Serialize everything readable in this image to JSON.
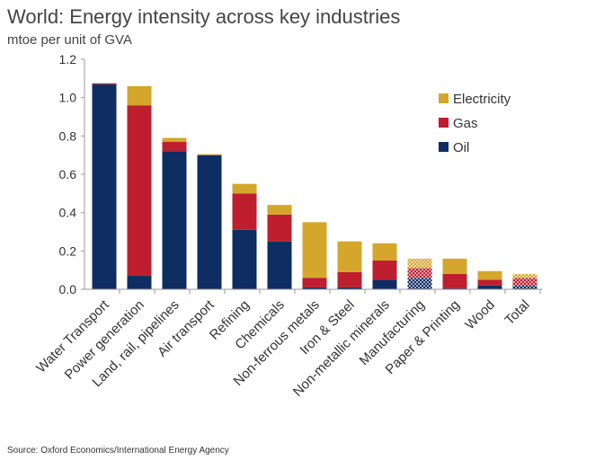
{
  "header": {
    "title": "World: Energy intensity across key industries",
    "subtitle": "mtoe per unit of GVA"
  },
  "footer": {
    "source": "Source: Oxford Economics/International Energy Agency"
  },
  "colors": {
    "oil": "#0d2d63",
    "gas": "#be1e2d",
    "electricity": "#d4a72c"
  },
  "chart_data": {
    "type": "bar",
    "stacked": true,
    "categories": [
      "Water Transport",
      "Power generation",
      "Land, rail, pipelines",
      "Air transport",
      "Refining",
      "Chemicals",
      "Non-ferrous metals",
      "Iron & Steel",
      "Non-metallic minerals",
      "Manufacturing",
      "Paper & Printing",
      "Wood",
      "Total"
    ],
    "series": [
      {
        "name": "Oil",
        "color": "#0d2d63",
        "values": [
          1.07,
          0.07,
          0.72,
          0.7,
          0.31,
          0.25,
          0.01,
          0.01,
          0.05,
          0.06,
          0.005,
          0.02,
          0.02
        ]
      },
      {
        "name": "Gas",
        "color": "#be1e2d",
        "values": [
          0.005,
          0.89,
          0.05,
          0.0,
          0.19,
          0.14,
          0.05,
          0.08,
          0.1,
          0.05,
          0.075,
          0.03,
          0.04
        ]
      },
      {
        "name": "Electricity",
        "color": "#d4a72c",
        "values": [
          0.0,
          0.1,
          0.02,
          0.005,
          0.05,
          0.05,
          0.29,
          0.16,
          0.09,
          0.05,
          0.08,
          0.045,
          0.02
        ]
      }
    ],
    "hatched_categories": [
      "Manufacturing",
      "Total"
    ],
    "legend": {
      "position": "top-right",
      "entries": [
        "Electricity",
        "Gas",
        "Oil"
      ]
    },
    "ylim": [
      0,
      1.2
    ],
    "yticks": [
      "0.0",
      "0.2",
      "0.4",
      "0.6",
      "0.8",
      "1.0",
      "1.2"
    ],
    "grid": false
  }
}
